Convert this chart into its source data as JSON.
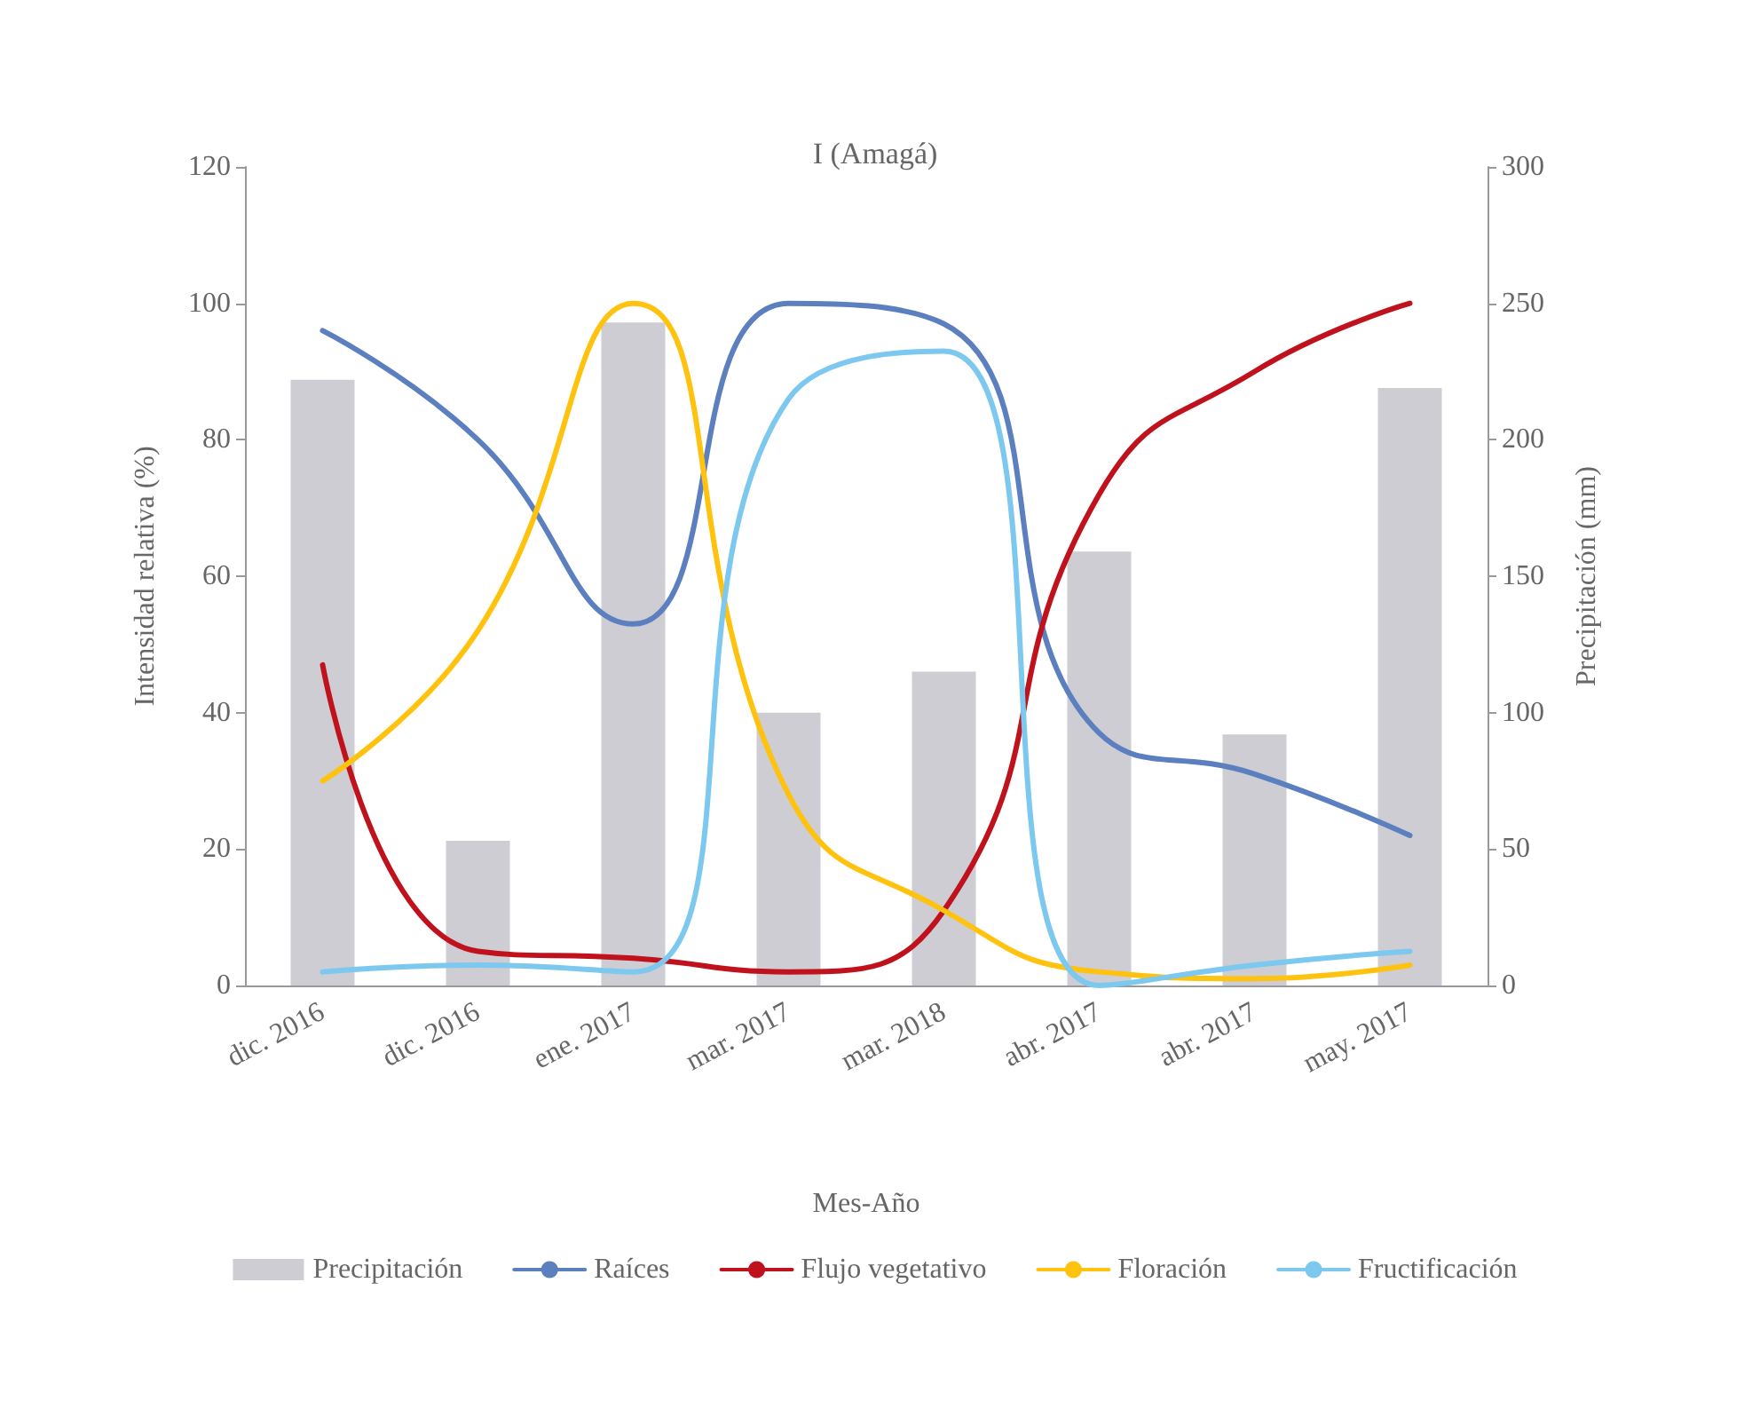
{
  "chart_data": {
    "type": "line",
    "title": "I (Amagá)",
    "xlabel": "Mes-Año",
    "ylabel": "Intensidad relativa (%)",
    "y2label": "Precipitación (mm)",
    "categories": [
      "dic. 2016",
      "dic. 2016",
      "ene. 2017",
      "mar. 2017",
      "mar. 2018",
      "abr. 2017",
      "abr. 2017",
      "may. 2017"
    ],
    "series": [
      {
        "name": "Precipitación",
        "type": "bar",
        "axis": "y2",
        "color": "#cdcdd3",
        "values": [
          222,
          53,
          243,
          100,
          115,
          159,
          92,
          219
        ]
      },
      {
        "name": "Raíces",
        "color": "#5b7fbf",
        "values": [
          96,
          80,
          53,
          100,
          97,
          37,
          31,
          22
        ]
      },
      {
        "name": "Flujo vegetativo",
        "color": "#c0121c",
        "values": [
          47,
          5,
          4,
          2,
          11,
          72,
          90,
          100
        ]
      },
      {
        "name": "Floración",
        "color": "#ffc20e",
        "values": [
          30,
          52,
          100,
          28,
          11,
          2,
          1,
          3
        ]
      },
      {
        "name": "Fructificación",
        "color": "#7dc8ef",
        "values": [
          2,
          3,
          2,
          86,
          93,
          0,
          3,
          5
        ]
      }
    ],
    "ylim": [
      0,
      120
    ],
    "yticks": [
      0,
      20,
      40,
      60,
      80,
      100,
      120
    ],
    "y2lim": [
      0,
      300
    ],
    "y2ticks": [
      0,
      50,
      100,
      150,
      200,
      250,
      300
    ],
    "grid": false,
    "legend": "bottom",
    "marker": "none",
    "line_style": "solid"
  }
}
